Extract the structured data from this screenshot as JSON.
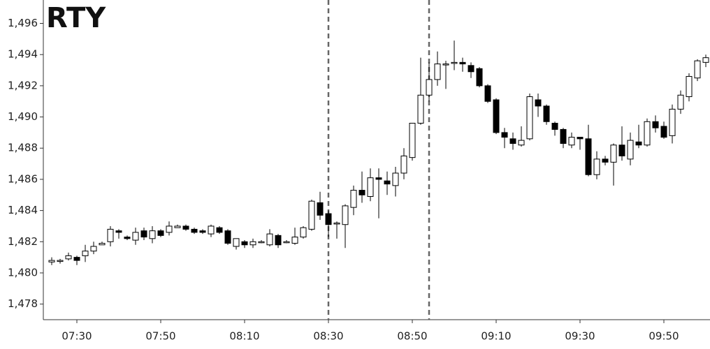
{
  "chart_data": {
    "type": "candlestick",
    "title": "RTY",
    "x": [
      "07:24",
      "07:26",
      "07:28",
      "07:30",
      "07:32",
      "07:34",
      "07:36",
      "07:38",
      "07:40",
      "07:42",
      "07:44",
      "07:46",
      "07:48",
      "07:50",
      "07:52",
      "07:54",
      "07:56",
      "07:58",
      "08:00",
      "08:02",
      "08:04",
      "08:06",
      "08:08",
      "08:10",
      "08:12",
      "08:14",
      "08:16",
      "08:18",
      "08:20",
      "08:22",
      "08:24",
      "08:26",
      "08:28",
      "08:30",
      "08:32",
      "08:34",
      "08:36",
      "08:38",
      "08:40",
      "08:42",
      "08:44",
      "08:46",
      "08:48",
      "08:50",
      "08:52",
      "08:54",
      "08:56",
      "08:58",
      "09:00",
      "09:02",
      "09:04",
      "09:06",
      "09:08",
      "09:10",
      "09:12",
      "09:14",
      "09:16",
      "09:18",
      "09:20",
      "09:22",
      "09:24",
      "09:26",
      "09:28",
      "09:30",
      "09:32",
      "09:34",
      "09:36",
      "09:38",
      "09:40",
      "09:42",
      "09:44",
      "09:46",
      "09:48",
      "09:50",
      "09:52",
      "09:54",
      "09:56",
      "09:58",
      "10:00"
    ],
    "open": [
      1480.7,
      1480.8,
      1480.9,
      1481.0,
      1481.1,
      1481.4,
      1481.8,
      1482.0,
      1482.7,
      1482.3,
      1482.1,
      1482.7,
      1482.2,
      1482.7,
      1482.6,
      1482.9,
      1483.0,
      1482.8,
      1482.7,
      1482.5,
      1482.9,
      1482.7,
      1481.7,
      1482.0,
      1481.8,
      1482.0,
      1481.8,
      1482.4,
      1482.0,
      1481.9,
      1482.3,
      1482.8,
      1484.5,
      1483.8,
      1483.2,
      1483.1,
      1484.2,
      1485.3,
      1484.9,
      1486.1,
      1485.9,
      1485.6,
      1486.4,
      1487.4,
      1489.6,
      1491.4,
      1492.4,
      1493.4,
      1493.5,
      1493.5,
      1493.3,
      1493.1,
      1492.0,
      1491.1,
      1489.0,
      1488.6,
      1488.2,
      1488.6,
      1491.1,
      1490.7,
      1489.6,
      1489.2,
      1488.2,
      1488.7,
      1488.6,
      1486.3,
      1487.3,
      1487.1,
      1488.2,
      1487.3,
      1488.4,
      1488.2,
      1489.7,
      1489.4,
      1488.8,
      1490.5,
      1491.3,
      1492.5,
      1493.5
    ],
    "high": [
      1481.0,
      1480.9,
      1481.3,
      1481.1,
      1481.8,
      1482.0,
      1482.0,
      1483.0,
      1482.8,
      1482.4,
      1482.9,
      1482.9,
      1483.0,
      1482.8,
      1483.3,
      1483.1,
      1483.1,
      1482.9,
      1482.8,
      1483.1,
      1483.0,
      1482.8,
      1482.2,
      1482.1,
      1482.2,
      1482.1,
      1482.8,
      1482.5,
      1482.1,
      1482.9,
      1483.0,
      1484.7,
      1485.2,
      1484.0,
      1483.3,
      1484.4,
      1485.6,
      1486.5,
      1486.7,
      1486.7,
      1486.5,
      1486.8,
      1488.0,
      1489.6,
      1493.8,
      1493.5,
      1494.2,
      1493.6,
      1494.9,
      1493.8,
      1493.5,
      1493.2,
      1492.1,
      1491.2,
      1489.3,
      1489.0,
      1489.4,
      1491.5,
      1491.5,
      1490.8,
      1489.7,
      1489.3,
      1489.0,
      1488.7,
      1489.5,
      1487.8,
      1487.5,
      1488.3,
      1489.4,
      1489.0,
      1489.5,
      1489.9,
      1490.1,
      1489.7,
      1490.8,
      1491.7,
      1492.8,
      1493.7,
      1494.0
    ],
    "low": [
      1480.5,
      1480.6,
      1480.8,
      1480.5,
      1480.7,
      1481.2,
      1481.8,
      1481.7,
      1482.2,
      1482.1,
      1481.8,
      1482.1,
      1481.9,
      1482.3,
      1482.4,
      1482.9,
      1482.7,
      1482.5,
      1482.5,
      1482.3,
      1482.5,
      1481.8,
      1481.5,
      1481.6,
      1481.6,
      1481.9,
      1481.7,
      1481.6,
      1481.9,
      1481.8,
      1482.2,
      1482.7,
      1483.4,
      1482.3,
      1482.2,
      1481.6,
      1483.7,
      1484.5,
      1484.6,
      1483.5,
      1485.0,
      1484.9,
      1486.0,
      1487.2,
      1489.5,
      1491.0,
      1492.0,
      1491.8,
      1493.0,
      1492.9,
      1492.5,
      1491.9,
      1490.9,
      1488.9,
      1488.0,
      1487.9,
      1488.1,
      1488.5,
      1490.0,
      1489.5,
      1488.8,
      1488.0,
      1488.0,
      1487.9,
      1486.2,
      1486.0,
      1486.9,
      1485.6,
      1487.2,
      1486.9,
      1488.0,
      1488.1,
      1489.0,
      1488.6,
      1488.3,
      1490.2,
      1491.0,
      1492.3,
      1493.2
    ],
    "close": [
      1480.8,
      1480.8,
      1481.1,
      1480.8,
      1481.4,
      1481.7,
      1481.9,
      1482.8,
      1482.6,
      1482.2,
      1482.6,
      1482.3,
      1482.7,
      1482.4,
      1483.0,
      1483.0,
      1482.8,
      1482.6,
      1482.6,
      1483.0,
      1482.6,
      1481.9,
      1482.2,
      1481.8,
      1482.0,
      1482.0,
      1482.5,
      1481.8,
      1482.0,
      1482.3,
      1482.9,
      1484.6,
      1483.7,
      1483.1,
      1483.2,
      1484.3,
      1485.3,
      1485.0,
      1486.1,
      1486.0,
      1485.7,
      1486.4,
      1487.5,
      1489.6,
      1491.4,
      1492.4,
      1493.4,
      1493.4,
      1493.5,
      1493.4,
      1492.9,
      1492.0,
      1491.0,
      1489.0,
      1488.7,
      1488.3,
      1488.5,
      1491.3,
      1490.7,
      1489.7,
      1489.2,
      1488.3,
      1488.7,
      1488.6,
      1486.3,
      1487.3,
      1487.1,
      1488.2,
      1487.5,
      1488.5,
      1488.2,
      1489.7,
      1489.3,
      1488.7,
      1490.5,
      1491.4,
      1492.6,
      1493.6,
      1493.8
    ],
    "up_color": "#ffffff",
    "down_color": "#000000",
    "xlim": [
      "07:22",
      "10:01"
    ],
    "xticks": [
      "07:30",
      "07:50",
      "08:10",
      "08:30",
      "08:50",
      "09:10",
      "09:30",
      "09:50"
    ],
    "ylim": [
      1477,
      1497.5
    ],
    "yticks": [
      {
        "value": 1478,
        "label": "1,478"
      },
      {
        "value": 1480,
        "label": "1,480"
      },
      {
        "value": 1482,
        "label": "1,482"
      },
      {
        "value": 1484,
        "label": "1,484"
      },
      {
        "value": 1486,
        "label": "1,486"
      },
      {
        "value": 1488,
        "label": "1,488"
      },
      {
        "value": 1490,
        "label": "1,490"
      },
      {
        "value": 1492,
        "label": "1,492"
      },
      {
        "value": 1494,
        "label": "1,494"
      },
      {
        "value": 1496,
        "label": "1,496"
      }
    ],
    "vlines": [
      "08:30",
      "08:54"
    ]
  }
}
